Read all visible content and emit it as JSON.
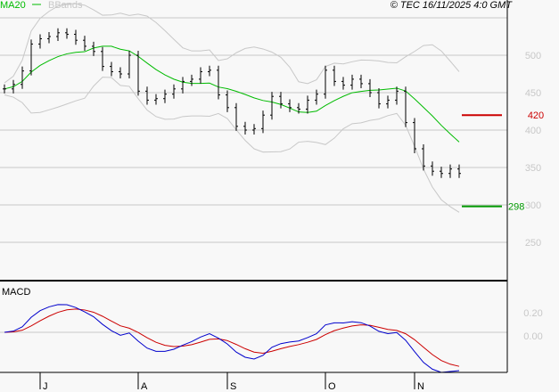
{
  "chart_data": {
    "type": "ohlc",
    "copyright": "© TEC 16/11/2025 4:0 GMT",
    "legend": [
      {
        "name": "MA20",
        "color": "#00bb00"
      },
      {
        "name": "BBands",
        "color": "#c8c8c8"
      }
    ],
    "legend_placement": "top-left",
    "price_axis": {
      "ticks": [
        250,
        300,
        350,
        400,
        450,
        500
      ],
      "range": [
        230,
        570
      ],
      "grid": true
    },
    "months": [
      "J",
      "A",
      "S",
      "O",
      "N"
    ],
    "month_bar_index": [
      4,
      15,
      25,
      36,
      46
    ],
    "closes": [
      455,
      461,
      479,
      515,
      522,
      525,
      530,
      528,
      520,
      512,
      505,
      485,
      478,
      475,
      500,
      452,
      440,
      442,
      448,
      455,
      465,
      468,
      478,
      480,
      447,
      430,
      405,
      400,
      402,
      420,
      445,
      435,
      430,
      428,
      440,
      448,
      480,
      465,
      460,
      468,
      462,
      450,
      435,
      440,
      452,
      410,
      375,
      352,
      345,
      342,
      348,
      342
    ],
    "levels": [
      {
        "value": 420,
        "label": "420",
        "color": "#cc0000"
      },
      {
        "value": 298,
        "label": "298",
        "color": "#009900"
      }
    ],
    "macd": {
      "title": "MACD",
      "ticks": [
        "0.20",
        "0.00"
      ],
      "macd_color": "#0000cc",
      "signal_color": "#cc0000"
    }
  }
}
